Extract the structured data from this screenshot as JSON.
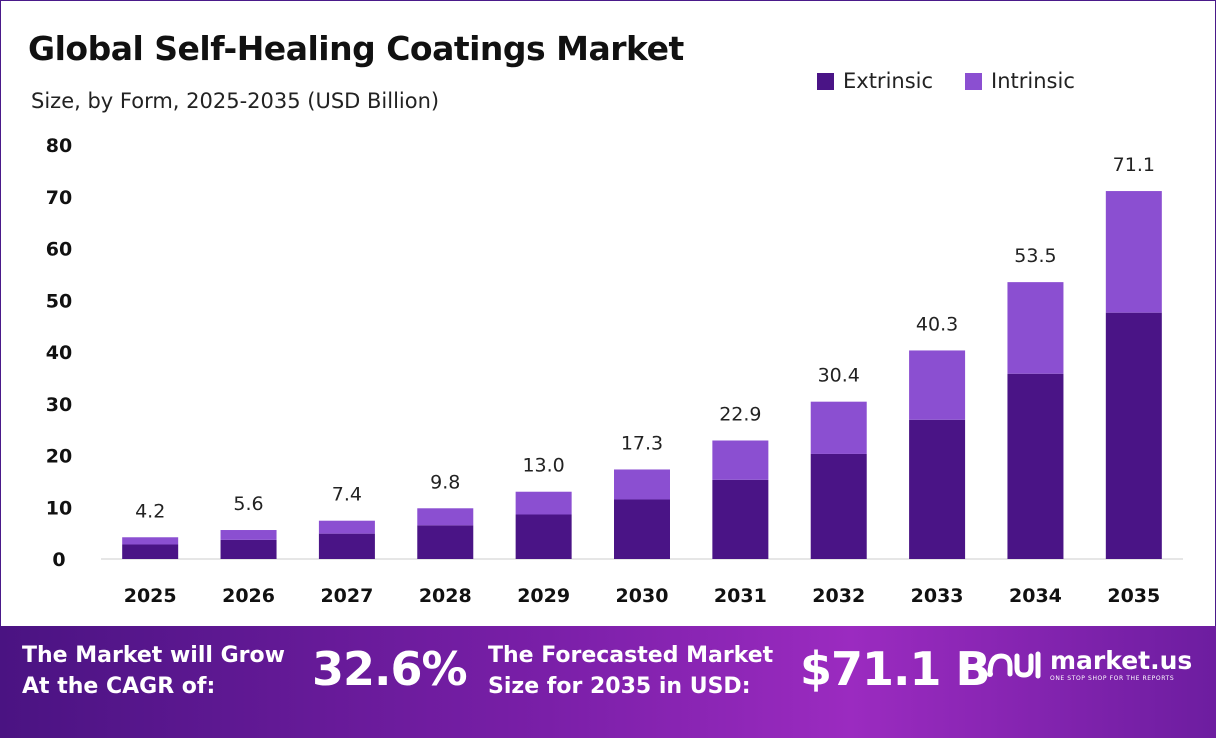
{
  "header": {
    "title": "Global Self-Healing Coatings Market",
    "subtitle": "Size, by Form, 2025-2035 (USD Billion)"
  },
  "legend": [
    {
      "label": "Extrinsic",
      "color": "#4a1486"
    },
    {
      "label": "Intrinsic",
      "color": "#8b4fd1"
    }
  ],
  "chart_data": {
    "type": "bar",
    "stacked": true,
    "categories": [
      "2025",
      "2026",
      "2027",
      "2028",
      "2029",
      "2030",
      "2031",
      "2032",
      "2033",
      "2034",
      "2035"
    ],
    "series": [
      {
        "name": "Extrinsic",
        "color": "#4a1486",
        "values": [
          2.8,
          3.7,
          4.9,
          6.5,
          8.6,
          11.5,
          15.3,
          20.3,
          26.9,
          35.8,
          47.6
        ]
      },
      {
        "name": "Intrinsic",
        "color": "#8b4fd1",
        "values": [
          1.4,
          1.9,
          2.5,
          3.3,
          4.4,
          5.8,
          7.6,
          10.1,
          13.4,
          17.7,
          23.5
        ]
      }
    ],
    "totals": [
      "4.2",
      "5.6",
      "7.4",
      "9.8",
      "13.0",
      "17.3",
      "22.9",
      "30.4",
      "40.3",
      "53.5",
      "71.1"
    ],
    "yticks": [
      0,
      10,
      20,
      30,
      40,
      50,
      60,
      70,
      80
    ],
    "ylim": [
      0,
      80
    ],
    "grid": false,
    "legend_position": "top-right"
  },
  "footer": {
    "cagr_label_line1": "The Market will Grow",
    "cagr_label_line2": "At the CAGR of:",
    "cagr_value": "32.6%",
    "forecast_label_line1": "The Forecasted Market",
    "forecast_label_line2": "Size for 2035 in USD:",
    "forecast_value": "$71.1 B",
    "brand_name": "market.us",
    "brand_tagline": "ONE STOP SHOP FOR THE REPORTS",
    "brand_icon": "market-us-logo-icon"
  }
}
